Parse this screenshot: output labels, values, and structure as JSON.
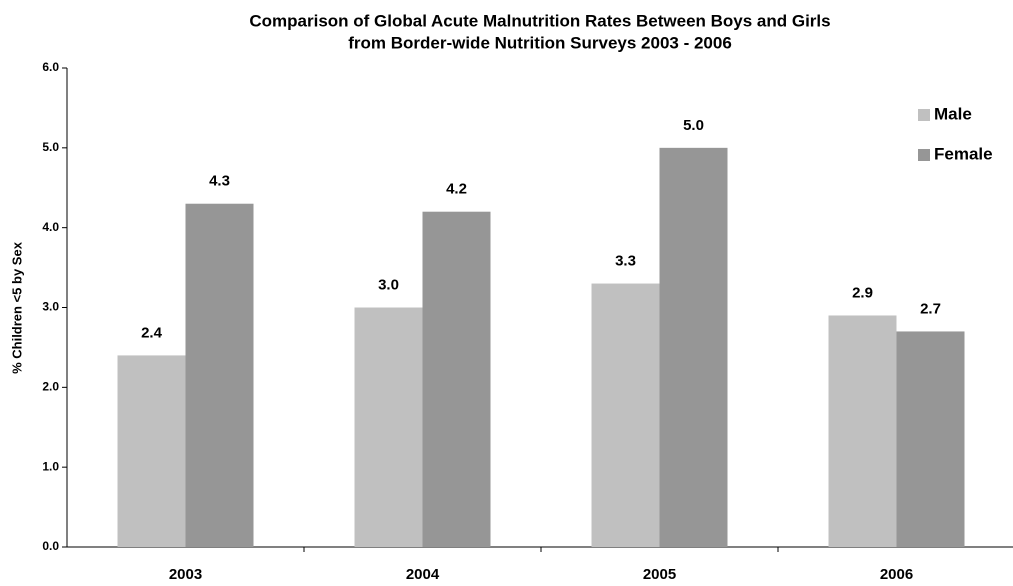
{
  "chart_data": {
    "type": "bar",
    "title": [
      "Comparison of Global Acute Malnutrition Rates Between Boys and Girls",
      "from Border-wide Nutrition Surveys 2003 - 2006"
    ],
    "y_label": "% Children <5 by Sex",
    "categories": [
      "2003",
      "2004",
      "2005",
      "2006"
    ],
    "series": [
      {
        "name": "Male",
        "color": "#c0c0c0",
        "values": [
          2.4,
          3.0,
          3.3,
          2.9
        ],
        "value_labels": [
          "2.4",
          "3.0",
          "3.3",
          "2.9"
        ]
      },
      {
        "name": "Female",
        "color": "#969696",
        "values": [
          4.3,
          4.2,
          5.0,
          2.7
        ],
        "value_labels": [
          "4.3",
          "4.2",
          "5.0",
          "2.7"
        ]
      }
    ],
    "ylim": [
      0,
      6
    ],
    "yticks": [
      {
        "value": 0,
        "label": "0.0"
      },
      {
        "value": 1,
        "label": "1.0"
      },
      {
        "value": 2,
        "label": "2.0"
      },
      {
        "value": 3,
        "label": "3.0"
      },
      {
        "value": 4,
        "label": "4.0"
      },
      {
        "value": 5,
        "label": "5.0"
      },
      {
        "value": 6,
        "label": "6.0"
      }
    ],
    "legend": "top-right"
  }
}
